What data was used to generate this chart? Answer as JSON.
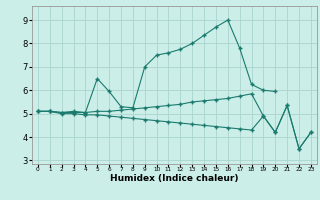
{
  "title": "",
  "xlabel": "Humidex (Indice chaleur)",
  "bg_color": "#cceee8",
  "grid_color": "#aad4ce",
  "line_color": "#1a7a6e",
  "xlim": [
    -0.5,
    23.5
  ],
  "ylim": [
    2.85,
    9.6
  ],
  "yticks": [
    3,
    4,
    5,
    6,
    7,
    8,
    9
  ],
  "xticks": [
    0,
    1,
    2,
    3,
    4,
    5,
    6,
    7,
    8,
    9,
    10,
    11,
    12,
    13,
    14,
    15,
    16,
    17,
    18,
    19,
    20,
    21,
    22,
    23
  ],
  "line1_x": [
    0,
    1,
    2,
    3,
    4,
    5,
    6,
    7,
    8,
    9,
    10,
    11,
    12,
    13,
    14,
    15,
    16,
    17,
    18,
    19,
    20
  ],
  "line1_y": [
    5.1,
    5.1,
    5.05,
    5.1,
    5.05,
    6.5,
    5.95,
    5.3,
    5.25,
    7.0,
    7.5,
    7.6,
    7.75,
    8.0,
    8.35,
    8.7,
    9.0,
    7.8,
    6.25,
    6.0,
    5.95
  ],
  "line2_x": [
    0,
    1,
    2,
    3,
    4,
    5,
    6,
    7,
    8,
    9,
    10,
    11,
    12,
    13,
    14,
    15,
    16,
    17,
    18,
    19,
    20,
    21,
    22,
    23
  ],
  "line2_y": [
    5.1,
    5.1,
    5.05,
    5.05,
    5.05,
    5.1,
    5.1,
    5.15,
    5.2,
    5.25,
    5.3,
    5.35,
    5.4,
    5.5,
    5.55,
    5.6,
    5.65,
    5.75,
    5.85,
    4.9,
    4.2,
    5.35,
    3.5,
    4.2
  ],
  "line3_x": [
    0,
    1,
    2,
    3,
    4,
    5,
    6,
    7,
    8,
    9,
    10,
    11,
    12,
    13,
    14,
    15,
    16,
    17,
    18,
    19,
    20,
    21,
    22,
    23
  ],
  "line3_y": [
    5.1,
    5.1,
    5.0,
    5.0,
    4.95,
    4.95,
    4.9,
    4.85,
    4.8,
    4.75,
    4.7,
    4.65,
    4.6,
    4.55,
    4.5,
    4.45,
    4.4,
    4.35,
    4.3,
    4.9,
    4.2,
    5.35,
    3.5,
    4.2
  ]
}
